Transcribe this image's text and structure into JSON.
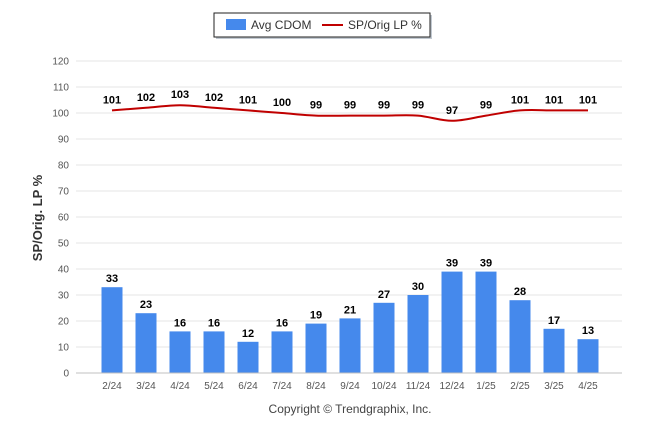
{
  "chart_data": {
    "type": "bar",
    "title": "",
    "xlabel": "",
    "ylabel": "SP/Orig. LP %",
    "ylim": [
      0,
      120
    ],
    "yticks": [
      0,
      10,
      20,
      30,
      40,
      50,
      60,
      70,
      80,
      90,
      100,
      110,
      120
    ],
    "grid": true,
    "legend_position": "top-center",
    "categories": [
      "2/24",
      "3/24",
      "4/24",
      "5/24",
      "6/24",
      "7/24",
      "8/24",
      "9/24",
      "10/24",
      "11/24",
      "12/24",
      "1/25",
      "2/25",
      "3/25",
      "4/25"
    ],
    "series": [
      {
        "name": "Avg CDOM",
        "type": "bar",
        "color": "#4589ec",
        "values": [
          33,
          23,
          16,
          16,
          12,
          16,
          19,
          21,
          27,
          30,
          39,
          39,
          28,
          17,
          13
        ]
      },
      {
        "name": "SP/Orig LP %",
        "type": "line",
        "color": "#c00000",
        "values": [
          101,
          102,
          103,
          102,
          101,
          100,
          99,
          99,
          99,
          99,
          97,
          99,
          101,
          101,
          101
        ]
      }
    ]
  },
  "footer": {
    "copyright": "Copyright © Trendgraphix, Inc."
  }
}
